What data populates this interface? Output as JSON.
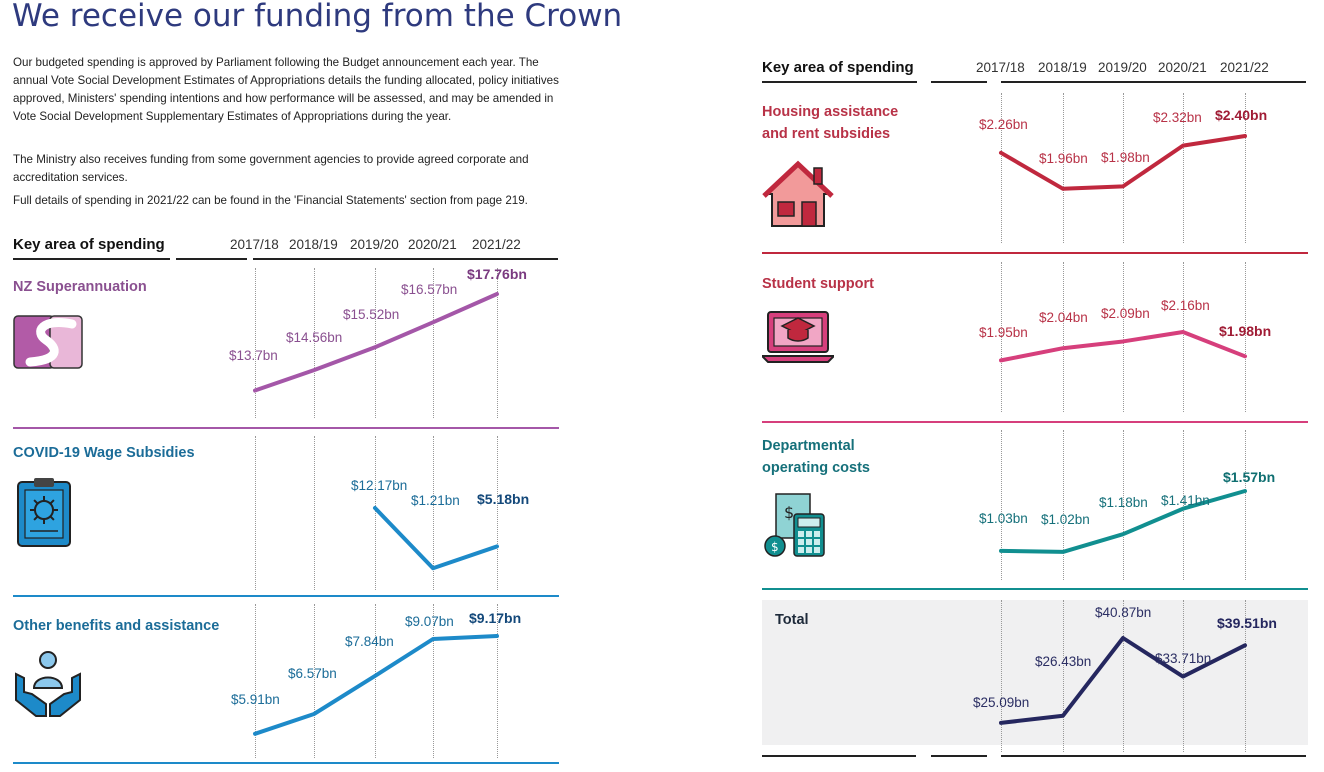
{
  "page": {
    "title": "We receive our funding from the Crown",
    "paragraphs": [
      "Our budgeted spending is approved by Parliament following the Budget announcement each year. The annual Vote Social Development Estimates of Appropriations details the funding allocated, policy initiatives approved, Ministers' spending intentions and how performance will be assessed, and may be amended in Vote Social Development Supplementary Estimates of Appropriations during the year.",
      "The Ministry also receives funding from some government agencies to provide agreed corporate and accreditation services.",
      "Full details of spending in 2021/22 can be found in the 'Financial Statements' section from page 219."
    ]
  },
  "headers": {
    "key_title": "Key area of spending",
    "years": [
      "2017/18",
      "2018/19",
      "2019/20",
      "2020/21",
      "2021/22"
    ]
  },
  "chart_data": [
    {
      "type": "line",
      "title": "NZ Superannuation",
      "x": [
        "2017/18",
        "2018/19",
        "2019/20",
        "2020/21",
        "2021/22"
      ],
      "values": [
        13.7,
        14.56,
        15.52,
        16.57,
        17.76
      ],
      "labels": [
        "$13.7bn",
        "$14.56bn",
        "$15.52bn",
        "$16.57bn",
        "$17.76bn"
      ],
      "color": "#a457a8",
      "label_color": "#8a5090",
      "icon": "superannuation-s-icon"
    },
    {
      "type": "line",
      "title": "COVID-19 Wage Subsidies",
      "x": [
        "2017/18",
        "2018/19",
        "2019/20",
        "2020/21",
        "2021/22"
      ],
      "values": [
        null,
        null,
        12.17,
        1.21,
        5.18
      ],
      "labels": [
        "",
        "",
        "$12.17bn",
        "$1.21bn",
        "$5.18bn"
      ],
      "color": "#1d8ac9",
      "label_color": "#1b6c98",
      "icon": "clipboard-virus-icon"
    },
    {
      "type": "line",
      "title": "Other benefits and assistance",
      "x": [
        "2017/18",
        "2018/19",
        "2019/20",
        "2020/21",
        "2021/22"
      ],
      "values": [
        5.91,
        6.57,
        7.84,
        9.07,
        9.17
      ],
      "labels": [
        "$5.91bn",
        "$6.57bn",
        "$7.84bn",
        "$9.07bn",
        "$9.17bn"
      ],
      "color": "#1d8ac9",
      "label_color": "#1b6c98",
      "icon": "hands-person-icon"
    },
    {
      "type": "line",
      "title": "Housing assistance and rent subsidies",
      "x": [
        "2017/18",
        "2018/19",
        "2019/20",
        "2020/21",
        "2021/22"
      ],
      "values": [
        2.26,
        1.96,
        1.98,
        2.32,
        2.4
      ],
      "labels": [
        "$2.26bn",
        "$1.96bn",
        "$1.98bn",
        "$2.32bn",
        "$2.40bn"
      ],
      "color": "#c0283e",
      "label_color": "#b83247",
      "icon": "house-icon"
    },
    {
      "type": "line",
      "title": "Student support",
      "x": [
        "2017/18",
        "2018/19",
        "2019/20",
        "2020/21",
        "2021/22"
      ],
      "values": [
        1.95,
        2.04,
        2.09,
        2.16,
        1.98
      ],
      "labels": [
        "$1.95bn",
        "$2.04bn",
        "$2.09bn",
        "$2.16bn",
        "$1.98bn"
      ],
      "color": "#d63f7c",
      "label_color": "#b83247",
      "icon": "laptop-graduation-icon"
    },
    {
      "type": "line",
      "title": "Departmental operating costs",
      "x": [
        "2017/18",
        "2018/19",
        "2019/20",
        "2020/21",
        "2021/22"
      ],
      "values": [
        1.03,
        1.02,
        1.18,
        1.41,
        1.57
      ],
      "labels": [
        "$1.03bn",
        "$1.02bn",
        "$1.18bn",
        "$1.41bn",
        "$1.57bn"
      ],
      "color": "#118f90",
      "label_color": "#15707a",
      "icon": "calculator-coins-icon"
    },
    {
      "type": "line",
      "title": "Total",
      "x": [
        "2017/18",
        "2018/19",
        "2019/20",
        "2020/21",
        "2021/22"
      ],
      "values": [
        25.09,
        26.43,
        40.87,
        33.71,
        39.51
      ],
      "labels": [
        "$25.09bn",
        "$26.43bn",
        "$40.87bn",
        "$33.71bn",
        "$39.51bn"
      ],
      "color": "#25275f",
      "label_color": "#2b2e63",
      "icon": ""
    }
  ]
}
